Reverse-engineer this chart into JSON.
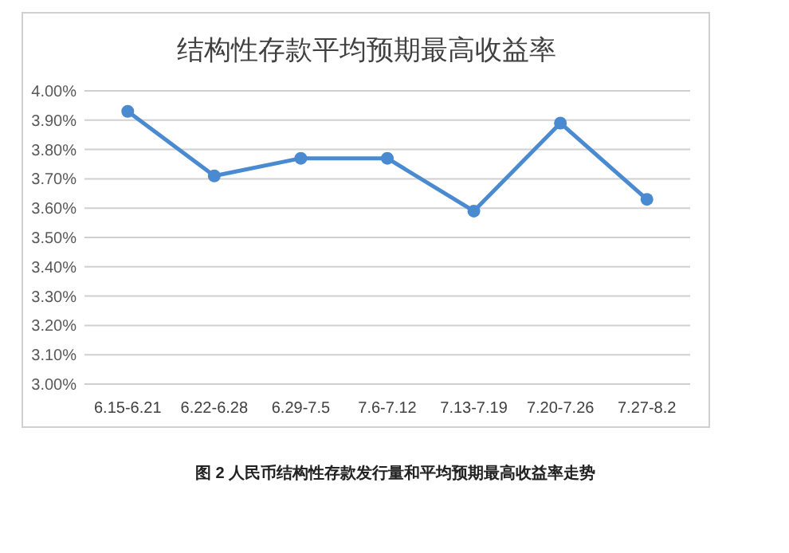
{
  "chart_data": {
    "type": "line",
    "title": "结构性存款平均预期最高收益率",
    "categories": [
      "6.15-6.21",
      "6.22-6.28",
      "6.29-7.5",
      "7.6-7.12",
      "7.13-7.19",
      "7.20-7.26",
      "7.27-8.2"
    ],
    "series": [
      {
        "color": "#4a8ad0",
        "values": [
          3.93,
          3.71,
          3.77,
          3.77,
          3.59,
          3.89,
          3.63
        ]
      }
    ],
    "ylim": [
      3.0,
      4.0
    ],
    "yticks": [
      {
        "value": 3.0,
        "label": "3.00%"
      },
      {
        "value": 3.1,
        "label": "3.10%"
      },
      {
        "value": 3.2,
        "label": "3.20%"
      },
      {
        "value": 3.3,
        "label": "3.30%"
      },
      {
        "value": 3.4,
        "label": "3.40%"
      },
      {
        "value": 3.5,
        "label": "3.50%"
      },
      {
        "value": 3.6,
        "label": "3.60%"
      },
      {
        "value": 3.7,
        "label": "3.70%"
      },
      {
        "value": 3.8,
        "label": "3.80%"
      },
      {
        "value": 3.9,
        "label": "3.90%"
      },
      {
        "value": 4.0,
        "label": "4.00%"
      }
    ],
    "grid": "y",
    "marker": "circle",
    "line_style": "solid",
    "annotations": [
      "图 2 人民币结构性存款发行量和平均预期最高收益率走势"
    ]
  }
}
